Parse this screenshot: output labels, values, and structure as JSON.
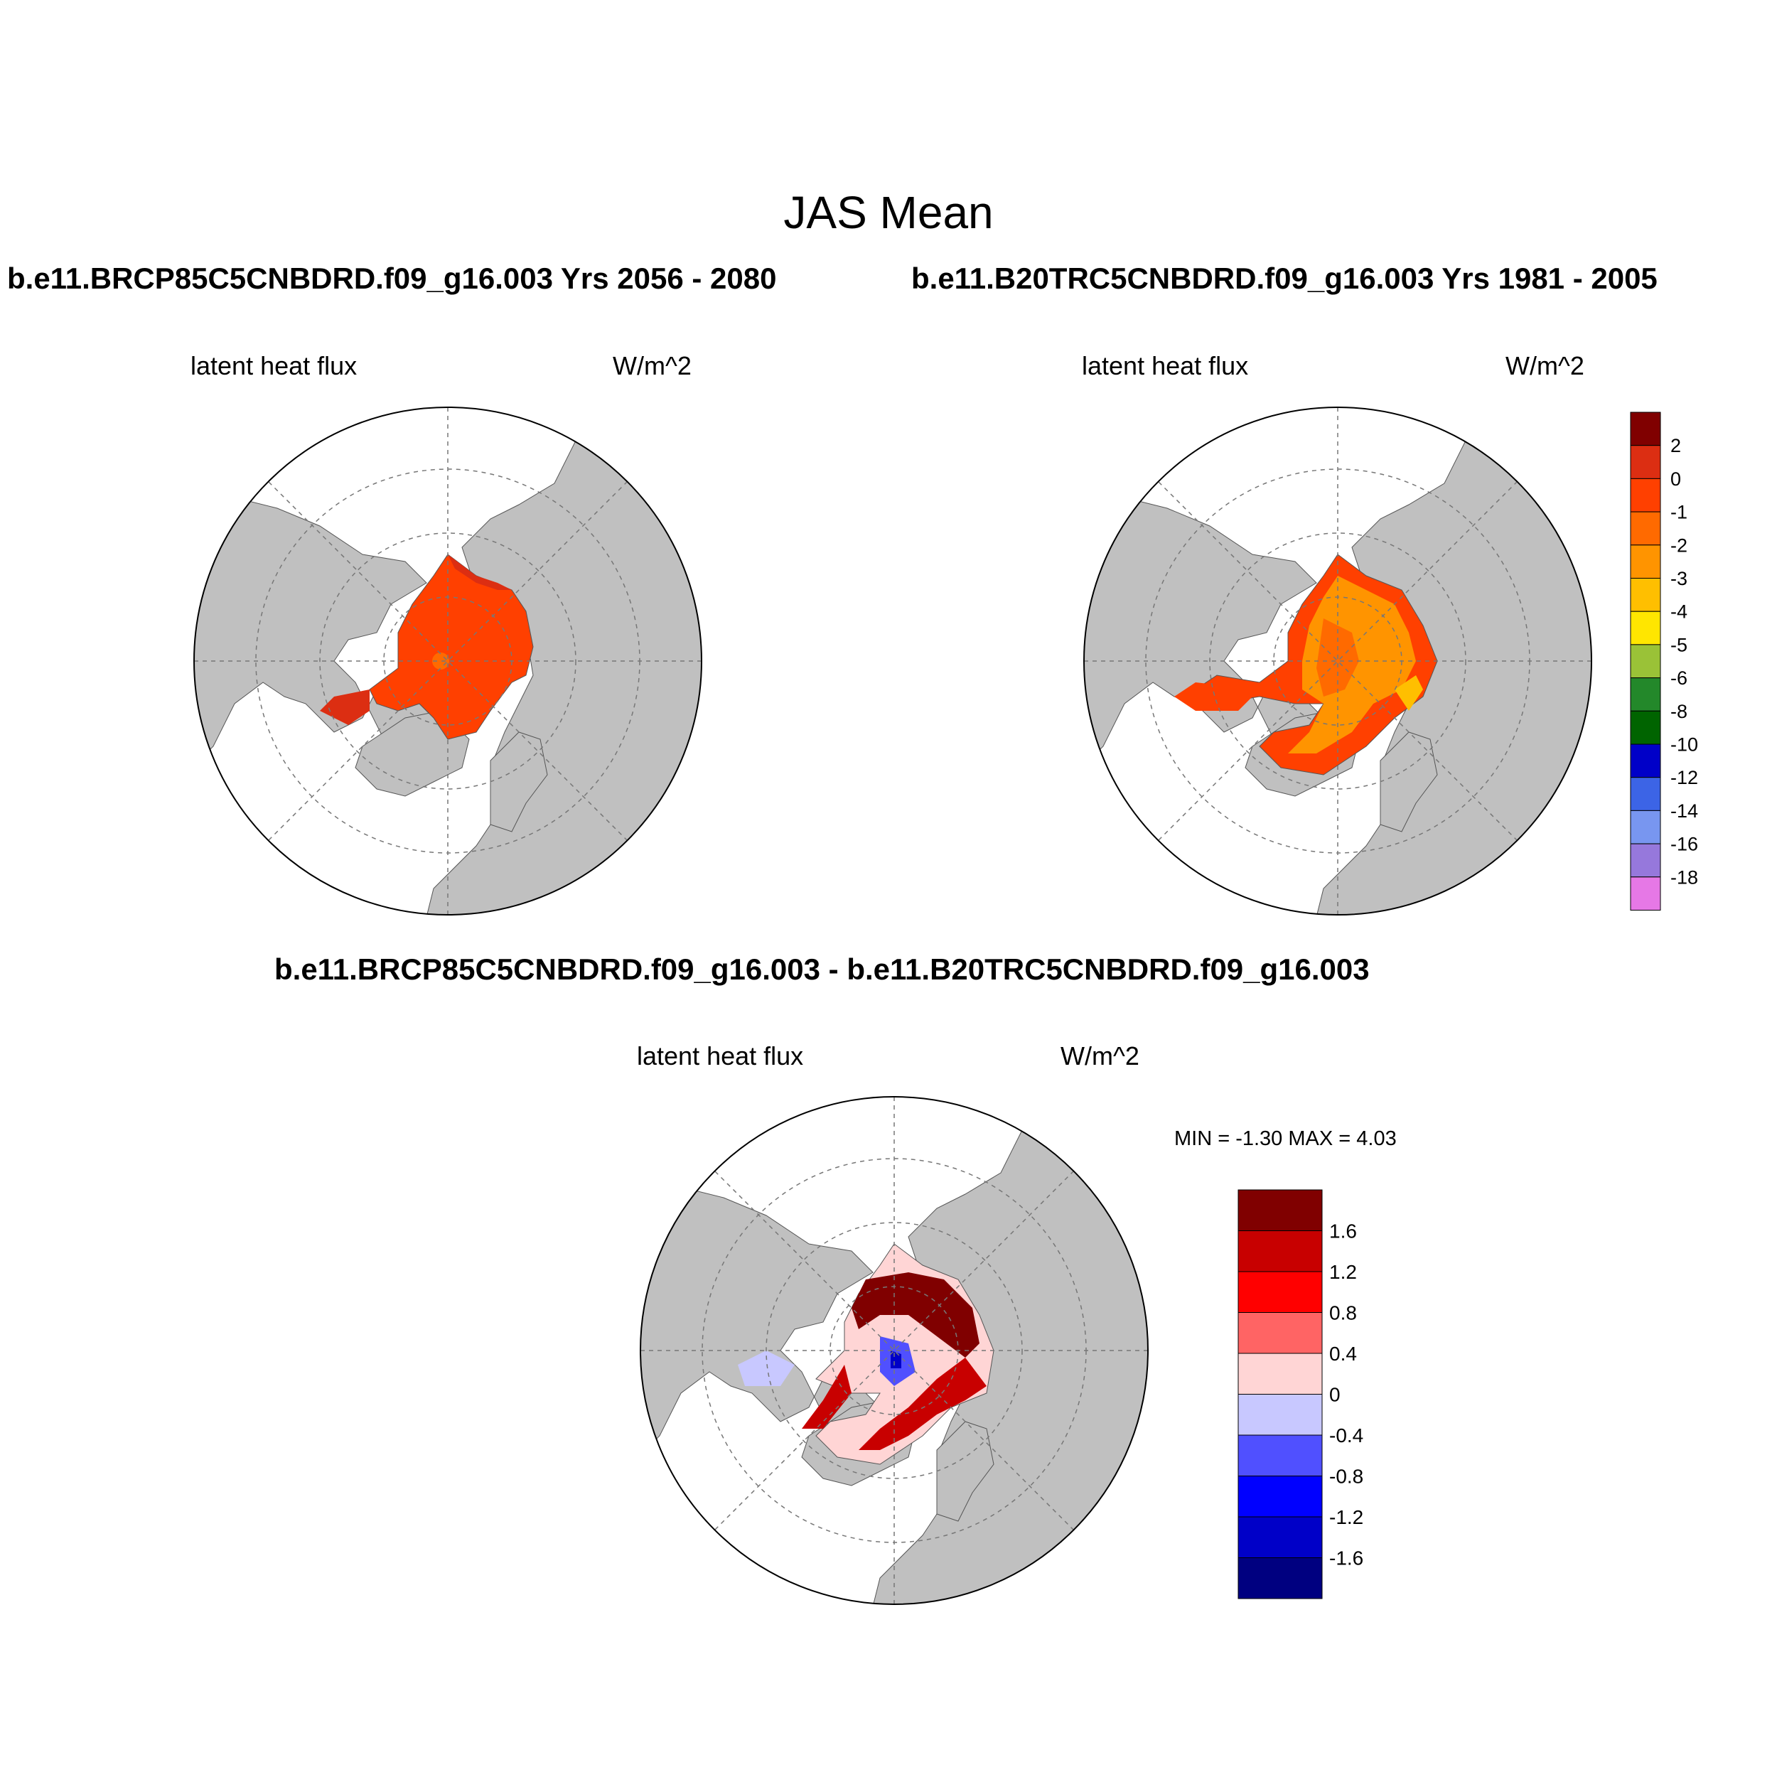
{
  "figure": {
    "title": "JAS Mean"
  },
  "panels": [
    {
      "title": "b.e11.BRCP85C5CNBDRD.f09_g16.003  Yrs 2056 - 2080",
      "left_label": "latent heat flux",
      "right_label": "W/m^2"
    },
    {
      "title": "b.e11.B20TRC5CNBDRD.f09_g16.003  Yrs 1981 - 2005",
      "left_label": "latent heat flux",
      "right_label": "W/m^2"
    },
    {
      "title": "b.e11.BRCP85C5CNBDRD.f09_g16.003 - b.e11.B20TRC5CNBDRD.f09_g16.003",
      "left_label": "latent heat flux",
      "right_label": "W/m^2",
      "stats": "MIN =  -1.30 MAX =   4.03"
    }
  ],
  "colorbar_top": {
    "labels": [
      "2",
      "0",
      "-1",
      "-2",
      "-3",
      "-4",
      "-5",
      "-6",
      "-8",
      "-10",
      "-12",
      "-14",
      "-16",
      "-18"
    ],
    "colors": [
      "#800000",
      "#dc2e12",
      "#ff4000",
      "#ff6a00",
      "#ff9400",
      "#ffbf00",
      "#ffe600",
      "#9ac237",
      "#23882a",
      "#006400",
      "#0000c8",
      "#3c64e6",
      "#7896f0",
      "#9678dc",
      "#e678e6"
    ]
  },
  "colorbar_diff": {
    "labels": [
      "1.6",
      "1.2",
      "0.8",
      "0.4",
      "0",
      "-0.4",
      "-0.8",
      "-1.2",
      "-1.6"
    ],
    "colors": [
      "#800000",
      "#c80000",
      "#ff0000",
      "#ff6464",
      "#ffd5d5",
      "#c8c8ff",
      "#5050ff",
      "#0000ff",
      "#0000c8",
      "#000080"
    ]
  },
  "map": {
    "land_color": "#c0c0c0",
    "ocean_color": "#ffffff",
    "projection": "north polar stereographic"
  },
  "chart_data": {
    "type": "heatmap",
    "title": "JAS Mean",
    "variable": "latent heat flux",
    "units": "W/m^2",
    "panels": [
      {
        "case": "b.e11.BRCP85C5CNBDRD.f09_g16.003",
        "years": "2056 - 2080",
        "dominant_range": "-1 to 0",
        "notes": "Arctic Ocean almost uniformly -1 to 0; small -2 spot near pole; 0 to 2 band along Siberian coast"
      },
      {
        "case": "b.e11.B20TRC5CNBDRD.f09_g16.003",
        "years": "1981 - 2005",
        "dominant_range": "-3 to 0",
        "notes": "Central Arctic -2 to -3, margins -1 to 0; Greenland Sea and Barents -2 to -4"
      },
      {
        "case": "difference",
        "min": -1.3,
        "max": 4.03,
        "notes": "Positive 0.8 to 1.6+ over Siberian/Eurasian Arctic and Greenland Sea margin; negative -0.4 to -1.2 patch north of Canadian Archipelago"
      }
    ]
  }
}
